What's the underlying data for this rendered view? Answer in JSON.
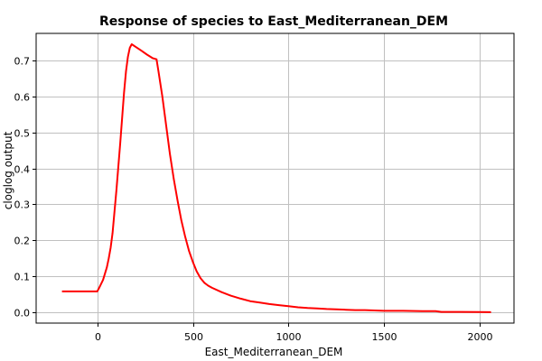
{
  "chart_data": {
    "type": "line",
    "title": "Response of species to East_Mediterranean_DEM",
    "xlabel": "East_Mediterranean_DEM",
    "ylabel": "cloglog output",
    "xlim": [
      -320,
      2180
    ],
    "ylim": [
      -0.03,
      0.775
    ],
    "xticks": [
      0,
      500,
      1000,
      1500,
      2000
    ],
    "yticks": [
      0.0,
      0.1,
      0.2,
      0.3,
      0.4,
      0.5,
      0.6,
      0.7
    ],
    "xtick_labels": [
      "0",
      "500",
      "1000",
      "1500",
      "2000"
    ],
    "ytick_labels": [
      "0.0",
      "0.1",
      "0.2",
      "0.3",
      "0.4",
      "0.5",
      "0.6",
      "0.7"
    ],
    "grid": true,
    "series": [
      {
        "color": "#ff0000",
        "x": [
          -185,
          -100,
          0,
          10,
          30,
          50,
          60,
          70,
          80,
          100,
          120,
          140,
          150,
          160,
          170,
          180,
          200,
          230,
          260,
          290,
          310,
          320,
          340,
          360,
          380,
          400,
          420,
          440,
          460,
          480,
          500,
          520,
          540,
          560,
          580,
          600,
          650,
          700,
          750,
          800,
          850,
          900,
          950,
          1000,
          1050,
          1100,
          1150,
          1200,
          1250,
          1300,
          1350,
          1400,
          1450,
          1500,
          1600,
          1700,
          1770,
          1800,
          1900,
          2000,
          2060
        ],
        "y": [
          0.058,
          0.058,
          0.058,
          0.068,
          0.09,
          0.125,
          0.15,
          0.18,
          0.22,
          0.34,
          0.47,
          0.61,
          0.67,
          0.71,
          0.735,
          0.745,
          0.738,
          0.727,
          0.716,
          0.706,
          0.703,
          0.67,
          0.6,
          0.52,
          0.44,
          0.37,
          0.31,
          0.255,
          0.21,
          0.17,
          0.14,
          0.114,
          0.095,
          0.082,
          0.074,
          0.068,
          0.056,
          0.046,
          0.038,
          0.031,
          0.027,
          0.023,
          0.02,
          0.017,
          0.014,
          0.012,
          0.011,
          0.009,
          0.008,
          0.007,
          0.006,
          0.006,
          0.005,
          0.004,
          0.004,
          0.003,
          0.003,
          0.001,
          0.001,
          0.0005,
          0.0003
        ]
      }
    ]
  }
}
